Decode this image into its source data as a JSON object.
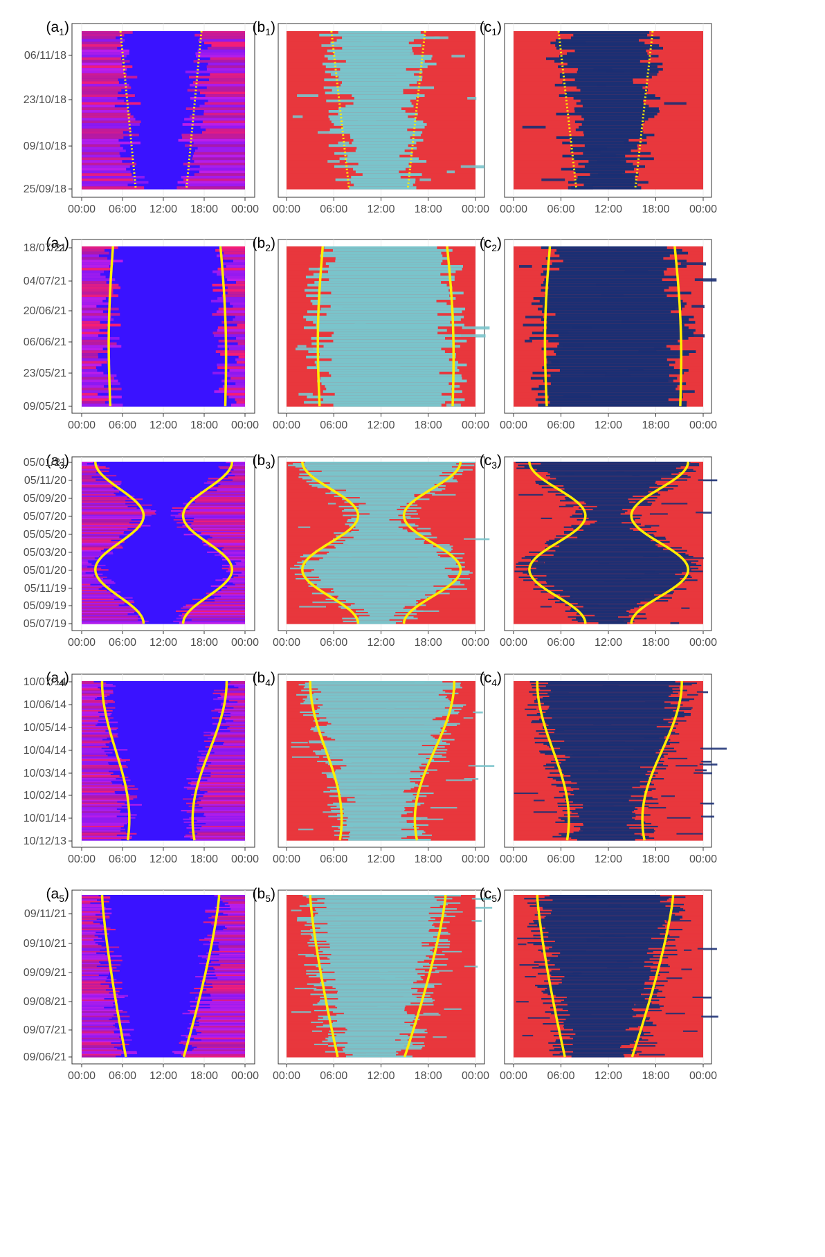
{
  "colors": {
    "heatmap_low": "#3a12ff",
    "heatmap_high": "#ff1f6e",
    "heatmap_mid": "#c71fe8",
    "class_red": "#e8373d",
    "class_cyan": "#7ac4cb",
    "class_navy": "#1b2f73",
    "boundary": "#ffee00",
    "panel_border": "#333333",
    "grid": "#ebebeb"
  },
  "x_ticks": [
    "00:00",
    "06:00",
    "12:00",
    "18:00",
    "00:00"
  ],
  "chart_data": [
    {
      "row": 1,
      "columns": [
        "a",
        "b",
        "c"
      ],
      "type": "heatmap",
      "y_ticks": [
        "06/11/18",
        "23/10/18",
        "09/10/18",
        "25/09/18"
      ],
      "boundary_style": "dotted",
      "boundary_hours": {
        "sunrise": [
          5.7,
          7.95
        ],
        "sunset": [
          17.6,
          15.4
        ]
      },
      "xlim": [
        "00:00",
        "24:00"
      ]
    },
    {
      "row": 2,
      "columns": [
        "a",
        "b",
        "c"
      ],
      "type": "heatmap",
      "y_ticks": [
        "18/07/21",
        "04/07/21",
        "20/06/21",
        "06/06/21",
        "23/05/21",
        "09/05/21"
      ],
      "boundary_style": "solid",
      "boundary_hours": {
        "sunrise": [
          4.6,
          4.2
        ],
        "sunset": [
          20.4,
          21.1
        ]
      },
      "xlim": [
        "00:00",
        "24:00"
      ]
    },
    {
      "row": 3,
      "columns": [
        "a",
        "b",
        "c"
      ],
      "type": "heatmap",
      "y_ticks": [
        "05/01/21",
        "05/11/20",
        "05/09/20",
        "05/07/20",
        "05/05/20",
        "05/03/20",
        "05/01/20",
        "05/11/19",
        "05/09/19",
        "05/07/19"
      ],
      "boundary_style": "solid",
      "boundary_hours": {
        "sunrise": [
          2.0,
          9.1
        ],
        "sunset": [
          22.1,
          14.9
        ]
      },
      "xlim": [
        "00:00",
        "24:00"
      ]
    },
    {
      "row": 4,
      "columns": [
        "a",
        "b",
        "c"
      ],
      "type": "heatmap",
      "y_ticks": [
        "10/07/14",
        "10/06/14",
        "10/05/14",
        "10/04/14",
        "10/03/14",
        "10/02/14",
        "10/01/14",
        "10/12/13"
      ],
      "boundary_style": "solid",
      "boundary_hours": {
        "sunrise": [
          3.0,
          7.0
        ],
        "sunset": [
          21.3,
          16.3
        ]
      },
      "xlim": [
        "00:00",
        "24:00"
      ]
    },
    {
      "row": 5,
      "columns": [
        "a",
        "b",
        "c"
      ],
      "type": "heatmap",
      "y_ticks": [
        "09/11/21",
        "09/10/21",
        "09/09/21",
        "09/08/21",
        "09/07/21",
        "09/06/21"
      ],
      "boundary_style": "solid",
      "boundary_hours": {
        "sunrise": [
          3.0,
          6.5
        ],
        "sunset": [
          20.2,
          15.0
        ]
      },
      "xlim": [
        "00:00",
        "24:00"
      ]
    }
  ],
  "panels": {
    "row1": {
      "a": "a",
      "a_sub": "1",
      "b": "b",
      "b_sub": "1",
      "c": "c",
      "c_sub": "1"
    },
    "row2": {
      "a": "a",
      "a_sub": "2",
      "b": "b",
      "b_sub": "2",
      "c": "c",
      "c_sub": "2"
    },
    "row3": {
      "a": "a",
      "a_sub": "3",
      "b": "b",
      "b_sub": "3",
      "c": "c",
      "c_sub": "3"
    },
    "row4": {
      "a": "a",
      "a_sub": "4",
      "b": "b",
      "b_sub": "4",
      "c": "c",
      "c_sub": "4"
    },
    "row5": {
      "a": "a",
      "a_sub": "5",
      "b": "b",
      "b_sub": "5",
      "c": "c",
      "c_sub": "5"
    }
  }
}
